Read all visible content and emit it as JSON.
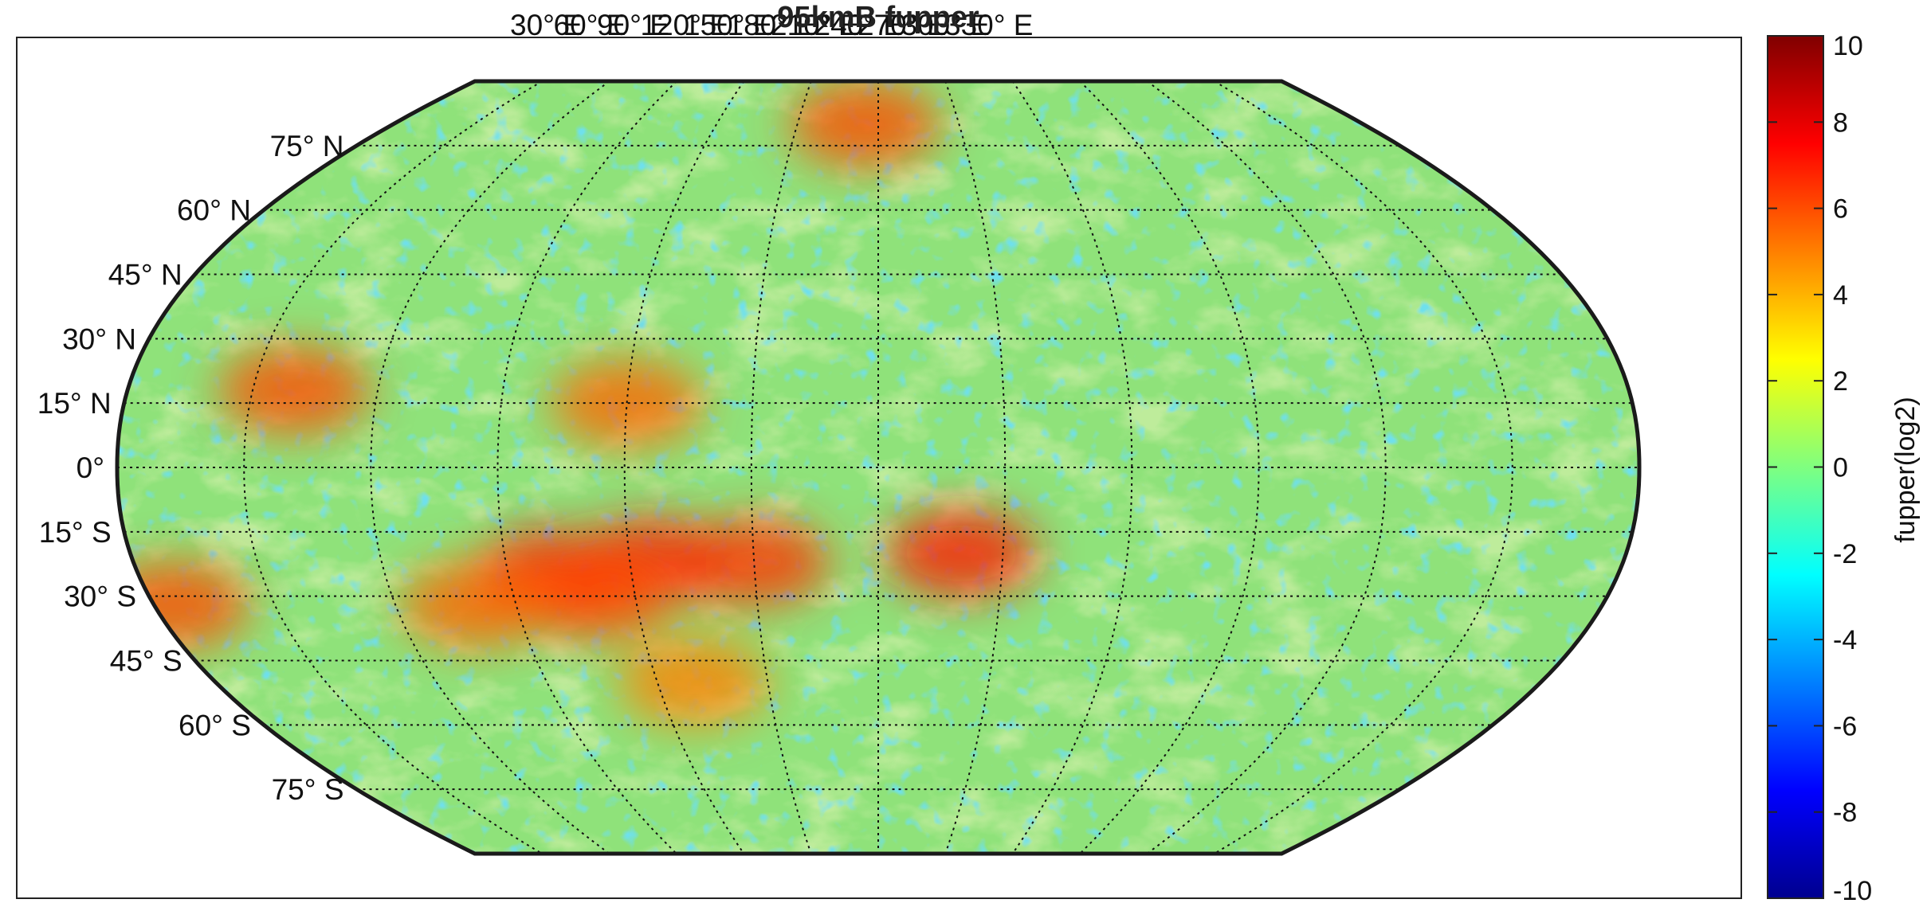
{
  "chart_data": {
    "type": "heatmap",
    "projection": "robinson",
    "title": "95kmB fupper",
    "colormap": "jet",
    "grid": true,
    "colorbar": {
      "label": "fupper(log2)",
      "range": [
        -10,
        10
      ],
      "ticks": [
        10,
        8,
        6,
        4,
        2,
        0,
        -2,
        -4,
        -6,
        -8,
        -10
      ],
      "placement": "right"
    },
    "lon_labels": [
      "30° E",
      "60° E",
      "90° E",
      "120° E",
      "150° E",
      "180° E",
      "210° E",
      "240° E",
      "270° E",
      "300° E",
      "330° E"
    ],
    "lat_labels": [
      "75° N",
      "60° N",
      "45° N",
      "30° N",
      "15° N",
      "0°",
      "15° S",
      "30° S",
      "45° S",
      "60° S",
      "75° S"
    ],
    "lon_ticks": [
      30,
      60,
      90,
      120,
      150,
      180,
      210,
      240,
      270,
      300,
      330
    ],
    "lat_ticks": [
      75,
      60,
      45,
      30,
      15,
      0,
      -15,
      -30,
      -45,
      -60,
      -75
    ],
    "hotspots": [
      {
        "lon": 100,
        "lat": -25,
        "value": 7.5
      },
      {
        "lon": 125,
        "lat": -22,
        "value": 7.0
      },
      {
        "lon": 150,
        "lat": -22,
        "value": 6.5
      },
      {
        "lon": 200,
        "lat": -20,
        "value": 7.0
      },
      {
        "lon": 40,
        "lat": 18,
        "value": 6.0
      },
      {
        "lon": 120,
        "lat": 15,
        "value": 5.5
      },
      {
        "lon": 110,
        "lat": -30,
        "value": 6.0
      },
      {
        "lon": 5,
        "lat": -32,
        "value": 6.0
      },
      {
        "lon": 80,
        "lat": -32,
        "value": 5.5
      },
      {
        "lon": 175,
        "lat": 80,
        "value": 6.0
      },
      {
        "lon": 130,
        "lat": -50,
        "value": 5.0
      }
    ]
  }
}
